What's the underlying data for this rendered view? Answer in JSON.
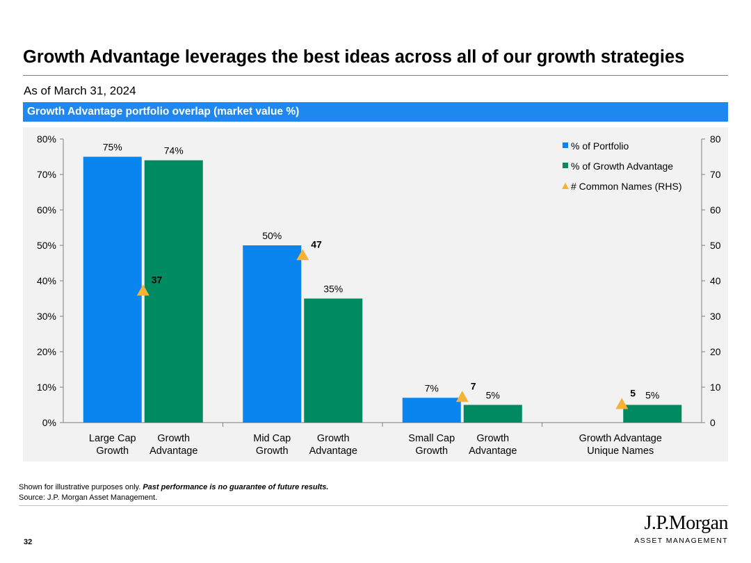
{
  "header": {
    "title": "Growth Advantage leverages the best ideas across all of our growth strategies",
    "as_of": "As of March 31, 2024",
    "banner": "Growth Advantage portfolio overlap (market value %)"
  },
  "chart_data": {
    "type": "bar",
    "title": "Growth Advantage portfolio overlap (market value %)",
    "ylim": [
      0,
      80
    ],
    "ylim_right": [
      0,
      80
    ],
    "y_ticks": [
      "0%",
      "10%",
      "20%",
      "30%",
      "40%",
      "50%",
      "60%",
      "70%",
      "80%"
    ],
    "y_ticks_right": [
      "0",
      "10",
      "20",
      "30",
      "40",
      "50",
      "60",
      "70",
      "80"
    ],
    "groups": [
      {
        "label": "Large Cap Growth",
        "portfolio_label": [
          "Large Cap",
          "Growth"
        ],
        "ga_label": [
          "Growth",
          "Advantage"
        ],
        "portfolio": 75,
        "growth_advantage": 74,
        "common_names": 37
      },
      {
        "label": "Mid Cap Growth",
        "portfolio_label": [
          "Mid Cap",
          "Growth"
        ],
        "ga_label": [
          "Growth",
          "Advantage"
        ],
        "portfolio": 50,
        "growth_advantage": 35,
        "common_names": 47
      },
      {
        "label": "Small Cap Growth",
        "portfolio_label": [
          "Small Cap",
          "Growth"
        ],
        "ga_label": [
          "Growth",
          "Advantage"
        ],
        "portfolio": 7,
        "growth_advantage": 5,
        "common_names": 7
      },
      {
        "label": "Growth Advantage Unique Names",
        "portfolio_label": null,
        "ga_label": [
          "Growth Advantage",
          "Unique Names"
        ],
        "portfolio": null,
        "growth_advantage": 5,
        "common_names": 5
      }
    ],
    "series": [
      {
        "name": "% of Portfolio",
        "color": "#0a84ee",
        "kind": "bar"
      },
      {
        "name": "% of Growth Advantage",
        "color": "#008a62",
        "kind": "bar"
      },
      {
        "name": "# Common Names (RHS)",
        "color": "#f5b335",
        "kind": "triangle-marker"
      }
    ],
    "legend": "top-right"
  },
  "footer": {
    "note_plain": "Shown for illustrative purposes only.",
    "note_bold": "Past performance is no guarantee of future results.",
    "source": "Source: J.P. Morgan Asset Management.",
    "page_number": "32",
    "logo_name": "J.P.Morgan",
    "logo_sub": "ASSET MANAGEMENT"
  }
}
